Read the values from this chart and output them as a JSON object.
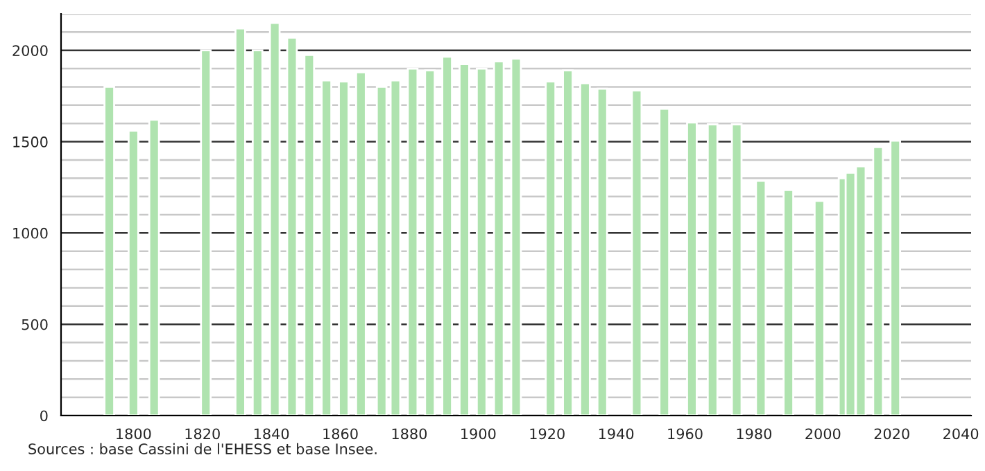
{
  "chart_data": {
    "type": "bar",
    "x": [
      1793,
      1800,
      1806,
      1821,
      1831,
      1836,
      1841,
      1846,
      1851,
      1856,
      1861,
      1866,
      1872,
      1876,
      1881,
      1886,
      1891,
      1896,
      1901,
      1906,
      1911,
      1921,
      1926,
      1931,
      1936,
      1946,
      1954,
      1962,
      1968,
      1975,
      1982,
      1990,
      1999,
      2006,
      2008,
      2011,
      2016,
      2021
    ],
    "series": [
      {
        "color": "#afe3af",
        "values": [
          1800,
          1560,
          1620,
          2000,
          2120,
          2000,
          2150,
          2070,
          1975,
          1835,
          1830,
          1880,
          1800,
          1835,
          1900,
          1890,
          1965,
          1925,
          1900,
          1940,
          1955,
          1830,
          1890,
          1820,
          1790,
          1780,
          1680,
          1605,
          1595,
          1595,
          1285,
          1235,
          1175,
          1300,
          1330,
          1365,
          1470,
          1505
        ]
      }
    ],
    "xlim": [
      1779,
      2043
    ],
    "xticks": [
      1800,
      1820,
      1840,
      1860,
      1880,
      1900,
      1920,
      1940,
      1960,
      1980,
      2000,
      2020,
      2040
    ],
    "ylim": [
      0,
      2200
    ],
    "yticks": [
      0,
      {
        "value": 100,
        "label": null
      },
      {
        "value": 200,
        "label": null
      },
      {
        "value": 300,
        "label": null
      },
      {
        "value": 400,
        "label": null
      },
      500,
      {
        "value": 600,
        "label": null
      },
      {
        "value": 700,
        "label": null
      },
      {
        "value": 800,
        "label": null
      },
      {
        "value": 900,
        "label": null
      },
      1000,
      {
        "value": 1100,
        "label": null
      },
      {
        "value": 1200,
        "label": null
      },
      {
        "value": 1300,
        "label": null
      },
      {
        "value": 1400,
        "label": null
      },
      1500,
      {
        "value": 1600,
        "label": null
      },
      {
        "value": 1700,
        "label": null
      },
      {
        "value": 1800,
        "label": null
      },
      {
        "value": 1900,
        "label": null
      },
      2000,
      {
        "value": 2100,
        "label": null
      },
      {
        "value": 2200,
        "label": null
      }
    ],
    "grid": "y",
    "annotations": [
      "Sources : base Cassini de l'EHESS et base Insee."
    ]
  }
}
